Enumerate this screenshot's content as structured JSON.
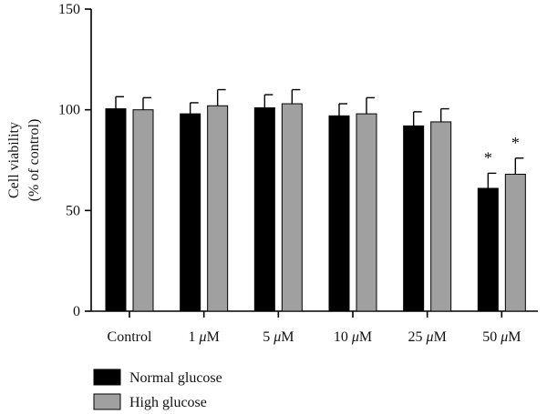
{
  "chart_data": {
    "type": "bar",
    "title": "",
    "xlabel": "",
    "ylabel_lines": [
      "Cell viability",
      "(% of control)"
    ],
    "categories": [
      "Control",
      "1 μM",
      "5 μM",
      "10 μM",
      "25 μM",
      "50 μM"
    ],
    "ylim": [
      0,
      150
    ],
    "yticks": [
      0,
      50,
      100,
      150
    ],
    "grid": false,
    "legend_position": "bottom-left",
    "series": [
      {
        "name": "Normal glucose",
        "color": "#000000",
        "values": [
          100.5,
          98,
          101,
          97,
          92,
          61
        ],
        "errors": [
          6,
          5.5,
          6.5,
          6,
          7,
          7.5
        ],
        "annotations": [
          "",
          "",
          "",
          "",
          "",
          "*"
        ]
      },
      {
        "name": "High glucose",
        "color": "#a0a0a0",
        "values": [
          100,
          102,
          103,
          98,
          94,
          68
        ],
        "errors": [
          6,
          8,
          7,
          8,
          6.5,
          8
        ],
        "annotations": [
          "",
          "",
          "",
          "",
          "",
          "*"
        ]
      }
    ]
  }
}
